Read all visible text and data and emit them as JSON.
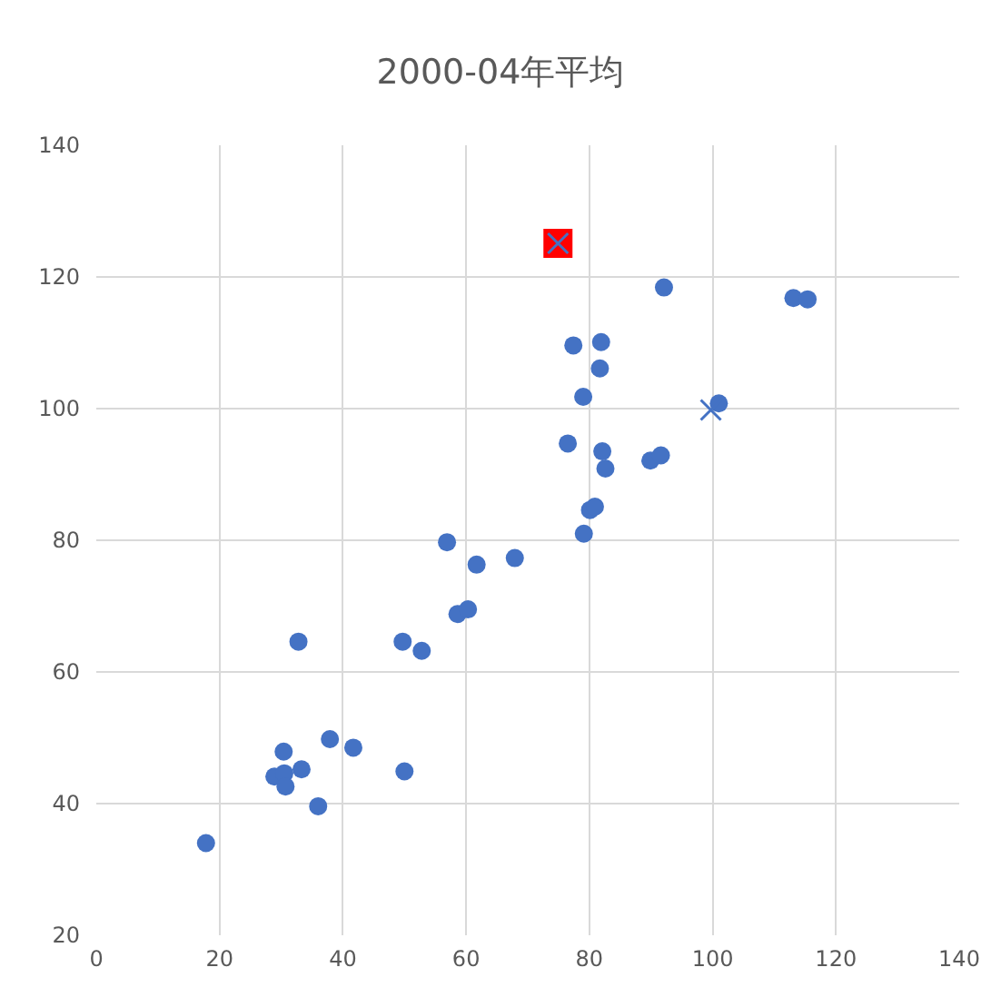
{
  "chart_data": {
    "type": "scatter",
    "title": "2000-04年平均",
    "xlim": [
      0,
      140
    ],
    "ylim": [
      20,
      140
    ],
    "xticks": [
      0,
      20,
      40,
      60,
      80,
      100,
      120,
      140
    ],
    "yticks": [
      20,
      40,
      60,
      80,
      100,
      120,
      140
    ],
    "grid": true,
    "series": [
      {
        "color": "#4472c4",
        "marker": "circle",
        "x": [
          17.8,
          28.9,
          30.5,
          30.7,
          30.4,
          33.3,
          36.0,
          37.9,
          41.7,
          50.0,
          32.8,
          49.7,
          52.8,
          56.9,
          61.7,
          67.9,
          58.6,
          60.3,
          92.1,
          113.1,
          115.4,
          77.4,
          81.9,
          81.7,
          79.0,
          101.0,
          76.5,
          82.1,
          82.6,
          89.9,
          91.6,
          80.1,
          80.9,
          79.1
        ],
        "values": [
          34.0,
          44.1,
          44.6,
          42.6,
          47.9,
          45.2,
          39.6,
          49.8,
          48.5,
          44.9,
          64.6,
          64.6,
          63.2,
          79.7,
          76.3,
          77.3,
          68.8,
          69.5,
          118.4,
          116.8,
          116.6,
          109.6,
          110.1,
          106.1,
          101.8,
          100.8,
          94.7,
          93.5,
          90.9,
          92.1,
          92.9,
          84.6,
          85.1,
          81.0
        ]
      },
      {
        "color": "#ff0000",
        "marker": "square",
        "x": [
          74.9
        ],
        "values": [
          125.1
        ]
      },
      {
        "color": "#4472c4",
        "marker": "cross",
        "x": [
          74.9,
          99.7
        ],
        "values": [
          125.1,
          99.8
        ]
      }
    ]
  }
}
